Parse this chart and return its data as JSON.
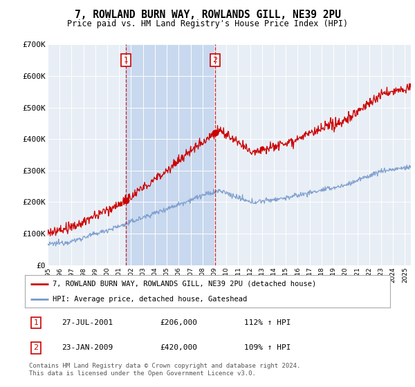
{
  "title": "7, ROWLAND BURN WAY, ROWLANDS GILL, NE39 2PU",
  "subtitle": "Price paid vs. HM Land Registry's House Price Index (HPI)",
  "legend_line1": "7, ROWLAND BURN WAY, ROWLANDS GILL, NE39 2PU (detached house)",
  "legend_line2": "HPI: Average price, detached house, Gateshead",
  "footnote": "Contains HM Land Registry data © Crown copyright and database right 2024.\nThis data is licensed under the Open Government Licence v3.0.",
  "transaction1_date": "27-JUL-2001",
  "transaction1_price": 206000,
  "transaction1_hpi": "112% ↑ HPI",
  "transaction2_date": "23-JAN-2009",
  "transaction2_price": 420000,
  "transaction2_hpi": "109% ↑ HPI",
  "hpi_color": "#7799cc",
  "price_color": "#cc0000",
  "annotation_color": "#cc0000",
  "background_color": "#ffffff",
  "plot_bg_color": "#e8eef5",
  "shade_color": "#c8d8ee",
  "ylim": [
    0,
    700000
  ],
  "yticks": [
    0,
    100000,
    200000,
    300000,
    400000,
    500000,
    600000,
    700000
  ],
  "ytick_labels": [
    "£0",
    "£100K",
    "£200K",
    "£300K",
    "£400K",
    "£500K",
    "£600K",
    "£700K"
  ],
  "xmin": 1995,
  "xmax": 2025.5,
  "t1_year": 2001.57,
  "t2_year": 2009.06
}
